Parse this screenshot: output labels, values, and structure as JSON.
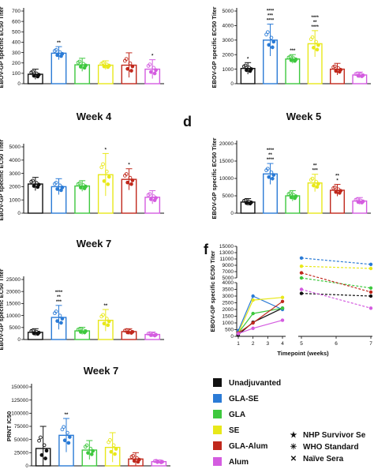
{
  "colors": {
    "Unadjuvanted": "#111111",
    "GLA-SE": "#2b7bd6",
    "GLA": "#3ec83e",
    "SE": "#e8e81a",
    "GLA-Alum": "#c0281c",
    "Alum": "#d45ce0"
  },
  "legend": {
    "groups": [
      "Unadjuvanted",
      "GLA-SE",
      "GLA",
      "SE",
      "GLA-Alum",
      "Alum"
    ],
    "references": [
      "NHP Survivor Se",
      "WHO Standard",
      "Naïve Sera"
    ]
  },
  "chart_data": [
    {
      "id": "a",
      "type": "bar",
      "title": "",
      "ylabel": "EBOV-GP specific EC50 Titer",
      "ylim": [
        0,
        1000
      ],
      "yticks": [
        "0",
        "100",
        "200",
        "300",
        "400",
        "500",
        "600",
        "700"
      ],
      "categories": [
        "Unadjuvanted",
        "GLA-SE",
        "GLA",
        "SE",
        "GLA-Alum",
        "Alum"
      ],
      "values": [
        130,
        420,
        260,
        255,
        255,
        200
      ],
      "errors": [
        70,
        90,
        90,
        60,
        170,
        130
      ],
      "annotations": [
        "",
        "**",
        "",
        "",
        "",
        "*"
      ]
    },
    {
      "id": "b",
      "type": "bar",
      "title": "",
      "ylabel": "EBOV-GP specific EC50 Titer",
      "ylim": [
        0,
        5000
      ],
      "yticks": [
        "0",
        "1000",
        "2000",
        "3000",
        "4000",
        "5000"
      ],
      "categories": [
        "Unadjuvanted",
        "GLA-SE",
        "GLA",
        "SE",
        "GLA-Alum",
        "Alum"
      ],
      "values": [
        1050,
        3000,
        1700,
        2750,
        1000,
        600
      ],
      "errors": [
        400,
        1100,
        300,
        900,
        400,
        200
      ],
      "annotations": [
        "*",
        "****\n***\n****",
        "***",
        "****\n**\n****",
        "",
        ""
      ]
    },
    {
      "id": "c",
      "type": "bar",
      "title": "Week 4",
      "ylabel": "EBOV-GP specific EC50 Titer",
      "ylim": [
        0,
        5000
      ],
      "yticks": [
        "0",
        "1000",
        "2000",
        "3000",
        "4000",
        "5000"
      ],
      "categories": [
        "Unadjuvanted",
        "GLA-SE",
        "GLA",
        "SE",
        "GLA-Alum",
        "Alum"
      ],
      "values": [
        2200,
        2000,
        2050,
        2900,
        2550,
        1200
      ],
      "errors": [
        500,
        600,
        400,
        1600,
        800,
        500
      ],
      "annotations": [
        "",
        "",
        "",
        "*",
        "*",
        ""
      ]
    },
    {
      "id": "d",
      "letter": "d",
      "type": "bar",
      "title": "Week 5",
      "ylabel": "EBOV-GP specific EC50 Titer",
      "ylim": [
        0,
        20000
      ],
      "yticks": [
        "0",
        "5000",
        "10000",
        "15000",
        "20000"
      ],
      "categories": [
        "Unadjuvanted",
        "GLA-SE",
        "GLA",
        "SE",
        "GLA-Alum",
        "Alum"
      ],
      "values": [
        3200,
        11300,
        5000,
        8700,
        6600,
        3500
      ],
      "errors": [
        1000,
        3000,
        1500,
        2500,
        1700,
        1000
      ],
      "annotations": [
        "",
        "****\n**\n****",
        "",
        "**\n***",
        "**\n*",
        ""
      ]
    },
    {
      "id": "e",
      "type": "bar",
      "title": "Week 7",
      "ylabel": "EBOV-GP specific EC50 Titer",
      "ylim": [
        0,
        25000
      ],
      "yticks": [
        "0",
        "5000",
        "10000",
        "15000",
        "20000",
        "25000"
      ],
      "categories": [
        "Unadjuvanted",
        "GLA-SE",
        "GLA",
        "SE",
        "GLA-Alum",
        "Alum"
      ],
      "values": [
        3000,
        9200,
        3600,
        8000,
        3300,
        2100
      ],
      "errors": [
        1500,
        5000,
        1500,
        4500,
        1200,
        1000
      ],
      "annotations": [
        "",
        "****\n**\n***",
        "",
        "**",
        "",
        ""
      ]
    },
    {
      "id": "f",
      "letter": "f",
      "type": "line",
      "title": "",
      "ylabel": "EBOV-GP specific EC50 Titer",
      "xlabel": "Timepoint (weeks)",
      "yticks_low": [
        "0",
        "500",
        "1000",
        "1500",
        "2000",
        "2500",
        "3000",
        "3500",
        "4000"
      ],
      "yticks_high": [
        "5000",
        "7000",
        "9000",
        "11000",
        "13000",
        "15000"
      ],
      "xticks_left": [
        "1",
        "2",
        "3",
        "4"
      ],
      "xticks_right": [
        "5",
        "6",
        "7"
      ],
      "series": [
        {
          "group": "Unadjuvanted",
          "x": [
            1,
            2,
            4,
            5,
            7
          ],
          "y": [
            120,
            1050,
            2100,
            3200,
            3000
          ]
        },
        {
          "group": "GLA-SE",
          "x": [
            1,
            2,
            4,
            5,
            7
          ],
          "y": [
            420,
            3000,
            2000,
            11300,
            9300
          ]
        },
        {
          "group": "GLA",
          "x": [
            1,
            2,
            4,
            5,
            7
          ],
          "y": [
            250,
            1700,
            2100,
            5000,
            3600
          ]
        },
        {
          "group": "SE",
          "x": [
            1,
            2,
            4,
            5,
            7
          ],
          "y": [
            250,
            2700,
            2900,
            8700,
            8000
          ]
        },
        {
          "group": "GLA-Alum",
          "x": [
            1,
            2,
            4,
            5,
            7
          ],
          "y": [
            250,
            1000,
            2600,
            6600,
            3300
          ]
        },
        {
          "group": "Alum",
          "x": [
            1,
            2,
            4,
            5,
            7
          ],
          "y": [
            200,
            600,
            1200,
            3500,
            2100
          ]
        }
      ]
    },
    {
      "id": "g",
      "type": "bar",
      "title": "Week 7",
      "ylabel": "PRNT IC50",
      "ylim": [
        0,
        150000
      ],
      "yticks": [
        "0",
        "25000",
        "50000",
        "75000",
        "100000",
        "125000",
        "150000"
      ],
      "categories": [
        "Unadjuvanted",
        "GLA-SE",
        "GLA",
        "SE",
        "GLA-Alum",
        "Alum"
      ],
      "values": [
        33000,
        58000,
        30000,
        35000,
        13000,
        8000
      ],
      "errors": [
        42000,
        32000,
        18000,
        28000,
        12000,
        3000
      ],
      "annotations": [
        "",
        "**",
        "",
        "",
        "",
        ""
      ]
    }
  ]
}
